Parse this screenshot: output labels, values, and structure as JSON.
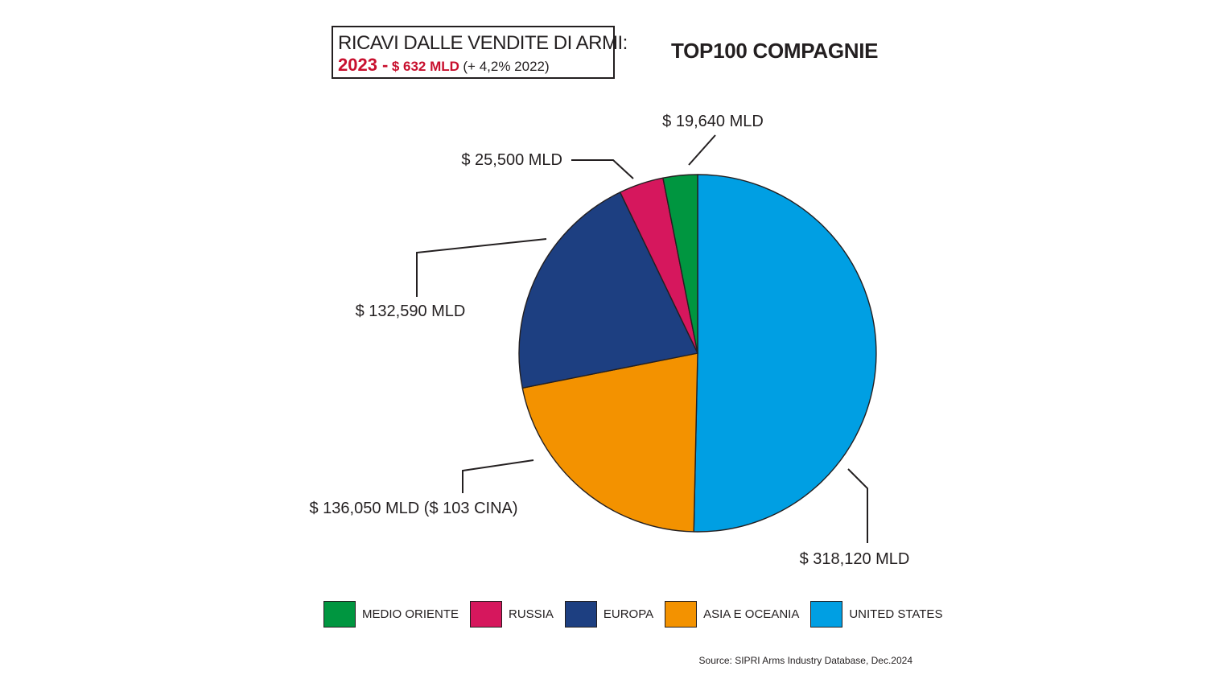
{
  "header": {
    "box_line1": "RICAVI DALLE VENDITE DI ARMI:",
    "box_year": "2023 -",
    "box_amount": "$ 632 MLD",
    "box_change": "(+ 4,2% 2022)",
    "title": "TOP100 COMPAGNIE"
  },
  "chart_data": {
    "type": "pie",
    "title": "TOP100 COMPAGNIE",
    "unit": "MLD",
    "slices": [
      {
        "name": "UNITED STATES",
        "value": 318120,
        "label": "$ 318,120 MLD",
        "color": "#009fe3"
      },
      {
        "name": "ASIA E OCEANIA",
        "value": 136050,
        "label": "$ 136,050 MLD ($ 103 CINA)",
        "color": "#f39200"
      },
      {
        "name": "EUROPA",
        "value": 132590,
        "label": "$ 132,590 MLD",
        "color": "#1d3f81"
      },
      {
        "name": "RUSSIA",
        "value": 25500,
        "label": "$ 25,500 MLD",
        "color": "#d6175d"
      },
      {
        "name": "MEDIO ORIENTE",
        "value": 19640,
        "label": "$ 19,640 MLD",
        "color": "#009640"
      }
    ],
    "legend": [
      "MEDIO ORIENTE",
      "RUSSIA",
      "EUROPA",
      "ASIA E OCEANIA",
      "UNITED STATES"
    ],
    "legend_placement": "bottom"
  },
  "source": "Source: SIPRI Arms Industry Database, Dec.2024"
}
